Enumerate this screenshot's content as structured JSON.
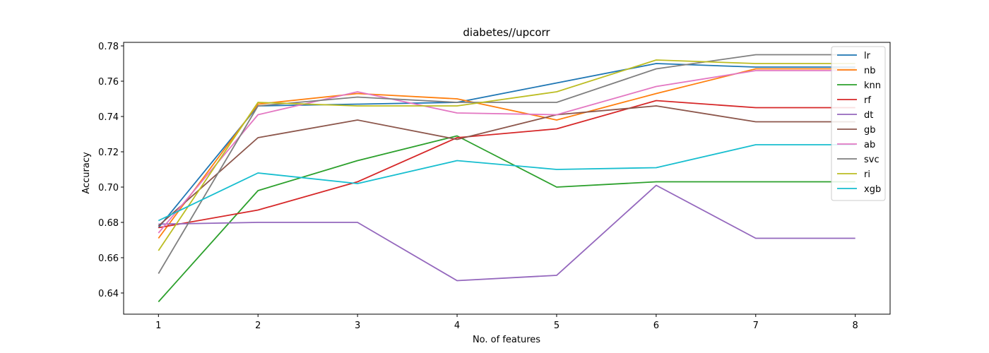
{
  "chart_data": {
    "type": "line",
    "title": "diabetes//upcorr",
    "xlabel": "No. of features",
    "ylabel": "Accuracy",
    "x": [
      1,
      2,
      3,
      4,
      5,
      6,
      7,
      8
    ],
    "xlim": [
      0.65,
      8.35
    ],
    "ylim": [
      0.628,
      0.782
    ],
    "yticks": [
      0.64,
      0.66,
      0.68,
      0.7,
      0.72,
      0.74,
      0.76,
      0.78
    ],
    "grid": false,
    "legend_position": "top-right",
    "series": [
      {
        "name": "lr",
        "color": "#1f77b4",
        "values": [
          0.677,
          0.746,
          0.747,
          0.748,
          0.759,
          0.77,
          0.768,
          0.768
        ]
      },
      {
        "name": "nb",
        "color": "#ff7f0e",
        "values": [
          0.671,
          0.747,
          0.753,
          0.75,
          0.738,
          0.753,
          0.767,
          0.767
        ]
      },
      {
        "name": "knn",
        "color": "#2ca02c",
        "values": [
          0.635,
          0.698,
          0.715,
          0.729,
          0.7,
          0.703,
          0.703,
          0.703
        ]
      },
      {
        "name": "rf",
        "color": "#d62728",
        "values": [
          0.677,
          0.687,
          0.703,
          0.728,
          0.733,
          0.749,
          0.745,
          0.745
        ]
      },
      {
        "name": "dt",
        "color": "#9467bd",
        "values": [
          0.679,
          0.68,
          0.68,
          0.647,
          0.65,
          0.701,
          0.671,
          0.671
        ]
      },
      {
        "name": "gb",
        "color": "#8c564b",
        "values": [
          0.678,
          0.728,
          0.738,
          0.727,
          0.741,
          0.746,
          0.737,
          0.737
        ]
      },
      {
        "name": "ab",
        "color": "#e377c2",
        "values": [
          0.674,
          0.741,
          0.754,
          0.742,
          0.741,
          0.757,
          0.766,
          0.766
        ]
      },
      {
        "name": "svc",
        "color": "#7f7f7f",
        "values": [
          0.651,
          0.746,
          0.751,
          0.748,
          0.748,
          0.767,
          0.775,
          0.775
        ]
      },
      {
        "name": "ri",
        "color": "#bcbd22",
        "values": [
          0.664,
          0.748,
          0.746,
          0.746,
          0.754,
          0.772,
          0.77,
          0.77
        ]
      },
      {
        "name": "xgb",
        "color": "#17becf",
        "values": [
          0.681,
          0.708,
          0.702,
          0.715,
          0.71,
          0.711,
          0.724,
          0.724
        ]
      }
    ]
  }
}
